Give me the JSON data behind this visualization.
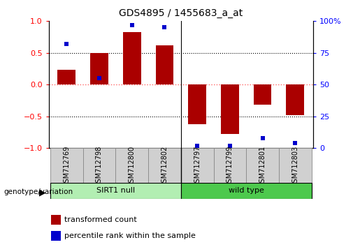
{
  "title": "GDS4895 / 1455683_a_at",
  "samples": [
    "GSM712769",
    "GSM712798",
    "GSM712800",
    "GSM712802",
    "GSM712797",
    "GSM712799",
    "GSM712801",
    "GSM712803"
  ],
  "red_values": [
    0.23,
    0.5,
    0.83,
    0.62,
    -0.62,
    -0.78,
    -0.32,
    -0.48
  ],
  "blue_values_pct": [
    82,
    55,
    97,
    95,
    2,
    2,
    8,
    4
  ],
  "groups": [
    {
      "label": "SIRT1 null",
      "start": 0,
      "end": 4,
      "color": "#B2EEB2"
    },
    {
      "label": "wild type",
      "start": 4,
      "end": 8,
      "color": "#4DC94D"
    }
  ],
  "ylim": [
    -1.0,
    1.0
  ],
  "yticks_left": [
    -1,
    -0.5,
    0,
    0.5,
    1
  ],
  "yticks_right": [
    0,
    25,
    50,
    75,
    100
  ],
  "bar_color": "#AA0000",
  "dot_color": "#0000CC",
  "bar_width": 0.55,
  "hline_red_color": "#FF6666",
  "dotted_color": "black",
  "legend_red": "transformed count",
  "legend_blue": "percentile rank within the sample",
  "group_label_text": "genotype/variation"
}
